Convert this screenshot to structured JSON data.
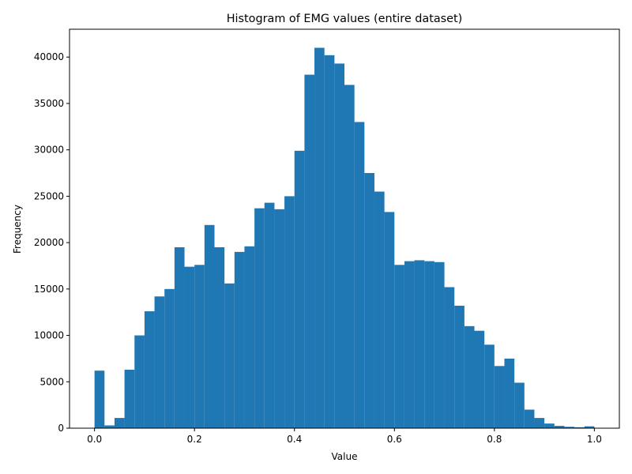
{
  "chart_data": {
    "type": "bar",
    "title": "Histogram of EMG values (entire dataset)",
    "xlabel": "Value",
    "ylabel": "Frequency",
    "xlim": [
      -0.05,
      1.05
    ],
    "ylim": [
      0,
      43000
    ],
    "bin_start": 0.0,
    "bin_width": 0.02,
    "values": [
      6200,
      300,
      1100,
      6300,
      10000,
      12600,
      14200,
      15000,
      19500,
      17400,
      17600,
      21900,
      19500,
      15600,
      19000,
      19600,
      23700,
      24300,
      23600,
      25000,
      29900,
      38100,
      41000,
      40200,
      39300,
      37000,
      33000,
      27500,
      25500,
      23300,
      17600,
      18000,
      18100,
      18000,
      17900,
      15200,
      13200,
      11000,
      10500,
      9000,
      6700,
      7500,
      4900,
      2000,
      1100,
      500,
      250,
      150,
      100,
      200
    ],
    "x_ticks": [
      0.0,
      0.2,
      0.4,
      0.6,
      0.8,
      1.0
    ],
    "x_tick_labels": [
      "0.0",
      "0.2",
      "0.4",
      "0.6",
      "0.8",
      "1.0"
    ],
    "y_ticks": [
      0,
      5000,
      10000,
      15000,
      20000,
      25000,
      30000,
      35000,
      40000
    ],
    "y_tick_labels": [
      "0",
      "5000",
      "10000",
      "15000",
      "20000",
      "25000",
      "30000",
      "35000",
      "40000"
    ],
    "bar_color": "#1f77b4",
    "grid": false,
    "legend": "none"
  }
}
